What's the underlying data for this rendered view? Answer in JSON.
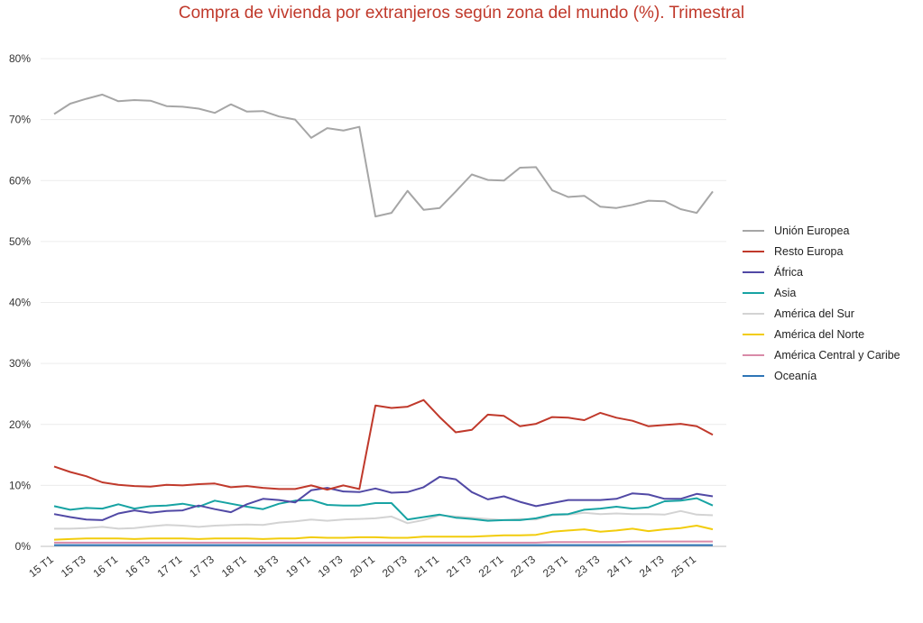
{
  "chart_data": {
    "type": "line",
    "title": "Compra de vivienda por extranjeros según zona del mundo (%). Trimestral",
    "xlabel": "",
    "ylabel": "",
    "ylim": [
      0,
      80
    ],
    "yticks": [
      "0%",
      "10%",
      "20%",
      "30%",
      "40%",
      "50%",
      "60%",
      "70%",
      "80%"
    ],
    "grid": true,
    "legend_position": "right",
    "x": [
      "15 T1",
      "15 T2",
      "15 T3",
      "15 T4",
      "16 T1",
      "16 T2",
      "16 T3",
      "16 T4",
      "17 T1",
      "17 T2",
      "17 T3",
      "17 T4",
      "18 T1",
      "18 T2",
      "18 T3",
      "18 T4",
      "19 T1",
      "19 T2",
      "19 T3",
      "19 T4",
      "20 T1",
      "20 T2",
      "20 T3",
      "20 T4",
      "21 T1",
      "21 T2",
      "21 T3",
      "21 T4",
      "22 T1",
      "22 T2",
      "22 T3",
      "22 T4",
      "23 T1",
      "23 T2",
      "23 T3",
      "23 T4",
      "24 T1",
      "24 T2",
      "24 T3",
      "24 T4",
      "25 T1",
      "25 T2"
    ],
    "x_tick_labels": [
      "15 T1",
      "15 T3",
      "16 T1",
      "16 T3",
      "17 T1",
      "17 T3",
      "18 T1",
      "18 T3",
      "19 T1",
      "19 T3",
      "20 T1",
      "20 T3",
      "21 T1",
      "21 T3",
      "22 T1",
      "22 T3",
      "23 T1",
      "23 T3",
      "24 T1",
      "24 T3",
      "25 T1"
    ],
    "series": [
      {
        "name": "Unión Europea",
        "color": "#a6a6a6",
        "values": [
          70.9,
          72.6,
          73.4,
          74.1,
          73.0,
          73.2,
          73.1,
          72.2,
          72.1,
          71.8,
          71.1,
          72.5,
          71.3,
          71.4,
          70.5,
          70.0,
          67.0,
          68.6,
          68.2,
          68.8,
          54.1,
          54.7,
          58.3,
          55.2,
          55.5,
          58.2,
          61.0,
          60.1,
          60.0,
          62.1,
          62.2,
          58.4,
          57.3,
          57.5,
          55.7,
          55.5,
          56.0,
          56.7,
          56.6,
          55.3,
          54.7,
          58.2
        ]
      },
      {
        "name": "Resto Europa",
        "color": "#c0392b",
        "values": [
          13.1,
          12.2,
          11.5,
          10.5,
          10.1,
          9.9,
          9.8,
          10.1,
          10.0,
          10.2,
          10.3,
          9.7,
          9.9,
          9.6,
          9.4,
          9.4,
          10.0,
          9.3,
          10.0,
          9.4,
          23.1,
          22.7,
          22.9,
          24.0,
          21.2,
          18.7,
          19.1,
          21.6,
          21.4,
          19.7,
          20.1,
          21.2,
          21.1,
          20.7,
          21.9,
          21.1,
          20.6,
          19.7,
          19.9,
          20.1,
          19.7,
          18.3
        ]
      },
      {
        "name": "África",
        "color": "#5149a5",
        "values": [
          5.3,
          4.8,
          4.4,
          4.3,
          5.4,
          5.9,
          5.5,
          5.8,
          5.9,
          6.7,
          6.1,
          5.6,
          6.9,
          7.8,
          7.6,
          7.2,
          9.2,
          9.6,
          9.0,
          8.9,
          9.5,
          8.8,
          8.9,
          9.7,
          11.4,
          11.0,
          8.9,
          7.7,
          8.2,
          7.3,
          6.6,
          7.1,
          7.6,
          7.6,
          7.6,
          7.8,
          8.7,
          8.5,
          7.8,
          7.8,
          8.6,
          8.2
        ]
      },
      {
        "name": "Asia",
        "color": "#17a3a3",
        "values": [
          6.6,
          6.0,
          6.3,
          6.2,
          6.9,
          6.2,
          6.6,
          6.7,
          7.0,
          6.5,
          7.5,
          7.0,
          6.5,
          6.1,
          7.0,
          7.5,
          7.6,
          6.8,
          6.7,
          6.7,
          7.1,
          7.1,
          4.4,
          4.8,
          5.2,
          4.7,
          4.5,
          4.2,
          4.3,
          4.3,
          4.6,
          5.2,
          5.3,
          6.0,
          6.2,
          6.5,
          6.2,
          6.4,
          7.4,
          7.5,
          7.9,
          6.7
        ]
      },
      {
        "name": "América del Sur",
        "color": "#d3d3d3",
        "values": [
          2.9,
          2.9,
          3.0,
          3.2,
          2.9,
          3.0,
          3.3,
          3.5,
          3.4,
          3.2,
          3.4,
          3.5,
          3.6,
          3.5,
          3.9,
          4.1,
          4.4,
          4.2,
          4.4,
          4.5,
          4.6,
          4.9,
          3.8,
          4.3,
          5.1,
          4.9,
          4.7,
          4.5,
          4.3,
          4.5,
          4.4,
          5.1,
          5.2,
          5.5,
          5.3,
          5.4,
          5.3,
          5.3,
          5.2,
          5.8,
          5.2,
          5.1
        ]
      },
      {
        "name": "América del Norte",
        "color": "#f2cc0c",
        "values": [
          1.1,
          1.2,
          1.3,
          1.3,
          1.3,
          1.2,
          1.3,
          1.3,
          1.3,
          1.2,
          1.3,
          1.3,
          1.3,
          1.2,
          1.3,
          1.3,
          1.5,
          1.4,
          1.4,
          1.5,
          1.5,
          1.4,
          1.4,
          1.6,
          1.6,
          1.6,
          1.6,
          1.7,
          1.8,
          1.8,
          1.9,
          2.4,
          2.6,
          2.8,
          2.4,
          2.6,
          2.9,
          2.5,
          2.8,
          3.0,
          3.4,
          2.8
        ]
      },
      {
        "name": "América Central y Caribe",
        "color": "#d98aa8",
        "values": [
          0.6,
          0.6,
          0.6,
          0.6,
          0.6,
          0.6,
          0.6,
          0.6,
          0.6,
          0.6,
          0.6,
          0.6,
          0.6,
          0.6,
          0.6,
          0.6,
          0.6,
          0.6,
          0.6,
          0.6,
          0.6,
          0.6,
          0.6,
          0.6,
          0.6,
          0.6,
          0.6,
          0.6,
          0.6,
          0.6,
          0.6,
          0.7,
          0.7,
          0.7,
          0.7,
          0.7,
          0.8,
          0.8,
          0.8,
          0.8,
          0.8,
          0.8
        ]
      },
      {
        "name": "Oceanía",
        "color": "#2e75b6",
        "values": [
          0.2,
          0.2,
          0.2,
          0.2,
          0.2,
          0.2,
          0.2,
          0.2,
          0.2,
          0.2,
          0.2,
          0.2,
          0.2,
          0.2,
          0.2,
          0.2,
          0.2,
          0.2,
          0.2,
          0.2,
          0.2,
          0.2,
          0.2,
          0.2,
          0.2,
          0.2,
          0.2,
          0.2,
          0.2,
          0.2,
          0.2,
          0.2,
          0.2,
          0.2,
          0.2,
          0.2,
          0.2,
          0.2,
          0.2,
          0.2,
          0.2,
          0.2
        ]
      }
    ]
  }
}
